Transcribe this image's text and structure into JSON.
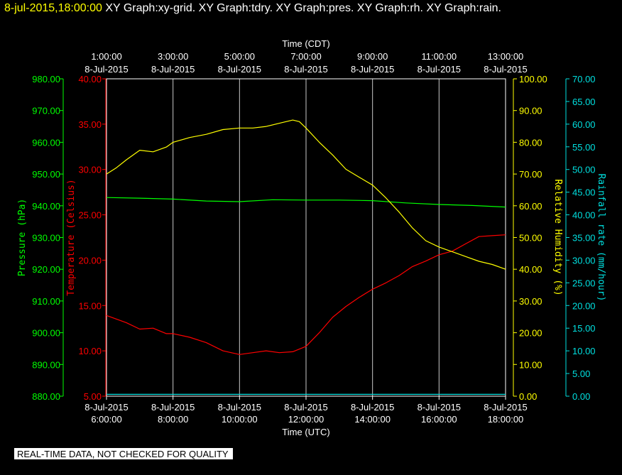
{
  "header": {
    "timestamp": "8-jul-2015,18:00:00",
    "graphs": [
      "XY Graph:xy-grid.",
      "XY Graph:tdry.",
      "XY Graph:pres.",
      "XY Graph:rh.",
      "XY Graph:rain."
    ]
  },
  "notice": "REAL-TIME DATA, NOT CHECKED FOR QUALITY",
  "colors": {
    "background": "#000000",
    "grid": "#c8c8c8",
    "frame": "#ffffff",
    "temperature": "#ff0000",
    "pressure": "#00ff00",
    "humidity": "#ffff00",
    "rain": "#00e0e0"
  },
  "chart_data": {
    "type": "line",
    "x_ticks": [
      6,
      8,
      10,
      12,
      14,
      16,
      18
    ],
    "top_axis": {
      "title": "Time (CDT)",
      "labels": [
        [
          "1:00:00",
          "8-Jul-2015"
        ],
        [
          "3:00:00",
          "8-Jul-2015"
        ],
        [
          "5:00:00",
          "8-Jul-2015"
        ],
        [
          "7:00:00",
          "8-Jul-2015"
        ],
        [
          "9:00:00",
          "8-Jul-2015"
        ],
        [
          "11:00:00",
          "8-Jul-2015"
        ],
        [
          "13:00:00",
          "8-Jul-2015"
        ]
      ]
    },
    "bottom_axis": {
      "title": "Time (UTC)",
      "labels": [
        [
          "8-Jul-2015",
          "6:00:00"
        ],
        [
          "8-Jul-2015",
          "8:00:00"
        ],
        [
          "8-Jul-2015",
          "10:00:00"
        ],
        [
          "8-Jul-2015",
          "12:00:00"
        ],
        [
          "8-Jul-2015",
          "14:00:00"
        ],
        [
          "8-Jul-2015",
          "16:00:00"
        ],
        [
          "8-Jul-2015",
          "18:00:00"
        ]
      ]
    },
    "xlim": [
      6,
      18
    ],
    "axes": {
      "pressure": {
        "title": "Pressure (hPa)",
        "ylim": [
          880,
          980
        ],
        "ticks": [
          "880.00",
          "890.00",
          "900.00",
          "910.00",
          "920.00",
          "930.00",
          "940.00",
          "950.00",
          "960.00",
          "970.00",
          "980.00"
        ]
      },
      "temperature": {
        "title": "Temperature (Celsius)",
        "ylim": [
          5,
          40
        ],
        "ticks": [
          "5.00",
          "10.00",
          "15.00",
          "20.00",
          "25.00",
          "30.00",
          "35.00",
          "40.00"
        ]
      },
      "humidity": {
        "title": "Relative Humidity (%)",
        "ylim": [
          0,
          100
        ],
        "ticks": [
          "0.00",
          "10.00",
          "20.00",
          "30.00",
          "40.00",
          "50.00",
          "60.00",
          "70.00",
          "80.00",
          "90.00",
          "100.00"
        ]
      },
      "rain": {
        "title": "Rainfall rate (mm/hour)",
        "ylim": [
          0,
          70
        ],
        "ticks": [
          "0.00",
          "5.00",
          "10.00",
          "15.00",
          "20.00",
          "25.00",
          "30.00",
          "35.00",
          "40.00",
          "45.00",
          "50.00",
          "55.00",
          "60.00",
          "65.00",
          "70.00"
        ]
      }
    },
    "series": [
      {
        "axis": "pressure",
        "x": [
          6.0,
          7.0,
          8.0,
          9.0,
          10.0,
          11.0,
          12.0,
          13.0,
          14.0,
          15.0,
          16.0,
          17.0,
          18.0
        ],
        "y": [
          942.6,
          942.4,
          942.1,
          941.5,
          941.3,
          941.9,
          941.8,
          941.8,
          941.6,
          940.9,
          940.4,
          940.1,
          939.6
        ]
      },
      {
        "axis": "temperature",
        "x": [
          6.0,
          6.3,
          6.6,
          7.0,
          7.4,
          7.8,
          8.0,
          8.5,
          9.0,
          9.5,
          10.0,
          10.4,
          10.8,
          11.2,
          11.6,
          12.0,
          12.4,
          12.8,
          13.2,
          13.6,
          14.0,
          14.4,
          14.8,
          15.2,
          15.6,
          16.0,
          16.4,
          16.8,
          17.2,
          17.6,
          18.0
        ],
        "y": [
          13.9,
          13.5,
          13.1,
          12.4,
          12.5,
          11.9,
          11.9,
          11.5,
          10.9,
          10.0,
          9.6,
          9.8,
          10.0,
          9.8,
          9.9,
          10.5,
          12.0,
          13.7,
          14.9,
          15.9,
          16.8,
          17.5,
          18.3,
          19.3,
          19.9,
          20.6,
          21.0,
          21.8,
          22.6,
          22.7,
          22.8
        ]
      },
      {
        "axis": "humidity",
        "x": [
          6.0,
          6.3,
          6.6,
          7.0,
          7.4,
          7.8,
          8.0,
          8.5,
          9.0,
          9.5,
          10.0,
          10.4,
          10.8,
          11.2,
          11.6,
          11.8,
          12.0,
          12.4,
          12.8,
          13.2,
          13.6,
          14.0,
          14.4,
          14.8,
          15.2,
          15.6,
          16.0,
          16.4,
          16.8,
          17.2,
          17.6,
          18.0
        ],
        "y": [
          70.0,
          72.0,
          74.5,
          77.5,
          77.0,
          78.5,
          80.0,
          81.5,
          82.5,
          84.0,
          84.5,
          84.5,
          85.0,
          86.0,
          87.0,
          86.5,
          84.5,
          80.0,
          76.0,
          71.5,
          69.0,
          66.5,
          62.5,
          58.0,
          53.0,
          49.0,
          47.0,
          45.5,
          44.0,
          42.5,
          41.5,
          40.0
        ]
      },
      {
        "axis": "rain",
        "x": [
          6.0,
          18.0
        ],
        "y": [
          0.4,
          0.4
        ]
      }
    ]
  }
}
